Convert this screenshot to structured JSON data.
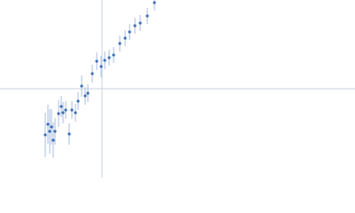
{
  "chart_data": {
    "type": "scatter",
    "x": [
      -64,
      -61,
      -59,
      -57,
      -55,
      -53,
      -49,
      -46,
      -44,
      -41,
      -37,
      -34,
      -30,
      -27,
      -23,
      -19,
      -16,
      -11,
      -6,
      -1,
      3,
      8,
      13,
      20,
      26,
      31,
      37,
      43,
      51,
      59
    ],
    "values": [
      -52,
      -40,
      -48,
      -43,
      -58,
      -48,
      -28,
      -20,
      -27,
      -24,
      -51,
      -24,
      -27,
      -14,
      3,
      -8,
      -5,
      17,
      31,
      25,
      32,
      35,
      38,
      51,
      57,
      64,
      71,
      74,
      82,
      97
    ],
    "errors": [
      25,
      22,
      25,
      20,
      20,
      15,
      15,
      12,
      12,
      10,
      12,
      10,
      10,
      10,
      12,
      10,
      10,
      10,
      10,
      12,
      10,
      9,
      9,
      9,
      9,
      9,
      9,
      9,
      9,
      9
    ],
    "color": "#3b6db3",
    "error_color": "#a9bedf",
    "zero_line_color": "#c9d1dd",
    "xlim": [
      -115,
      285
    ],
    "ylim": [
      -100,
      100
    ],
    "zero_lines": true
  }
}
